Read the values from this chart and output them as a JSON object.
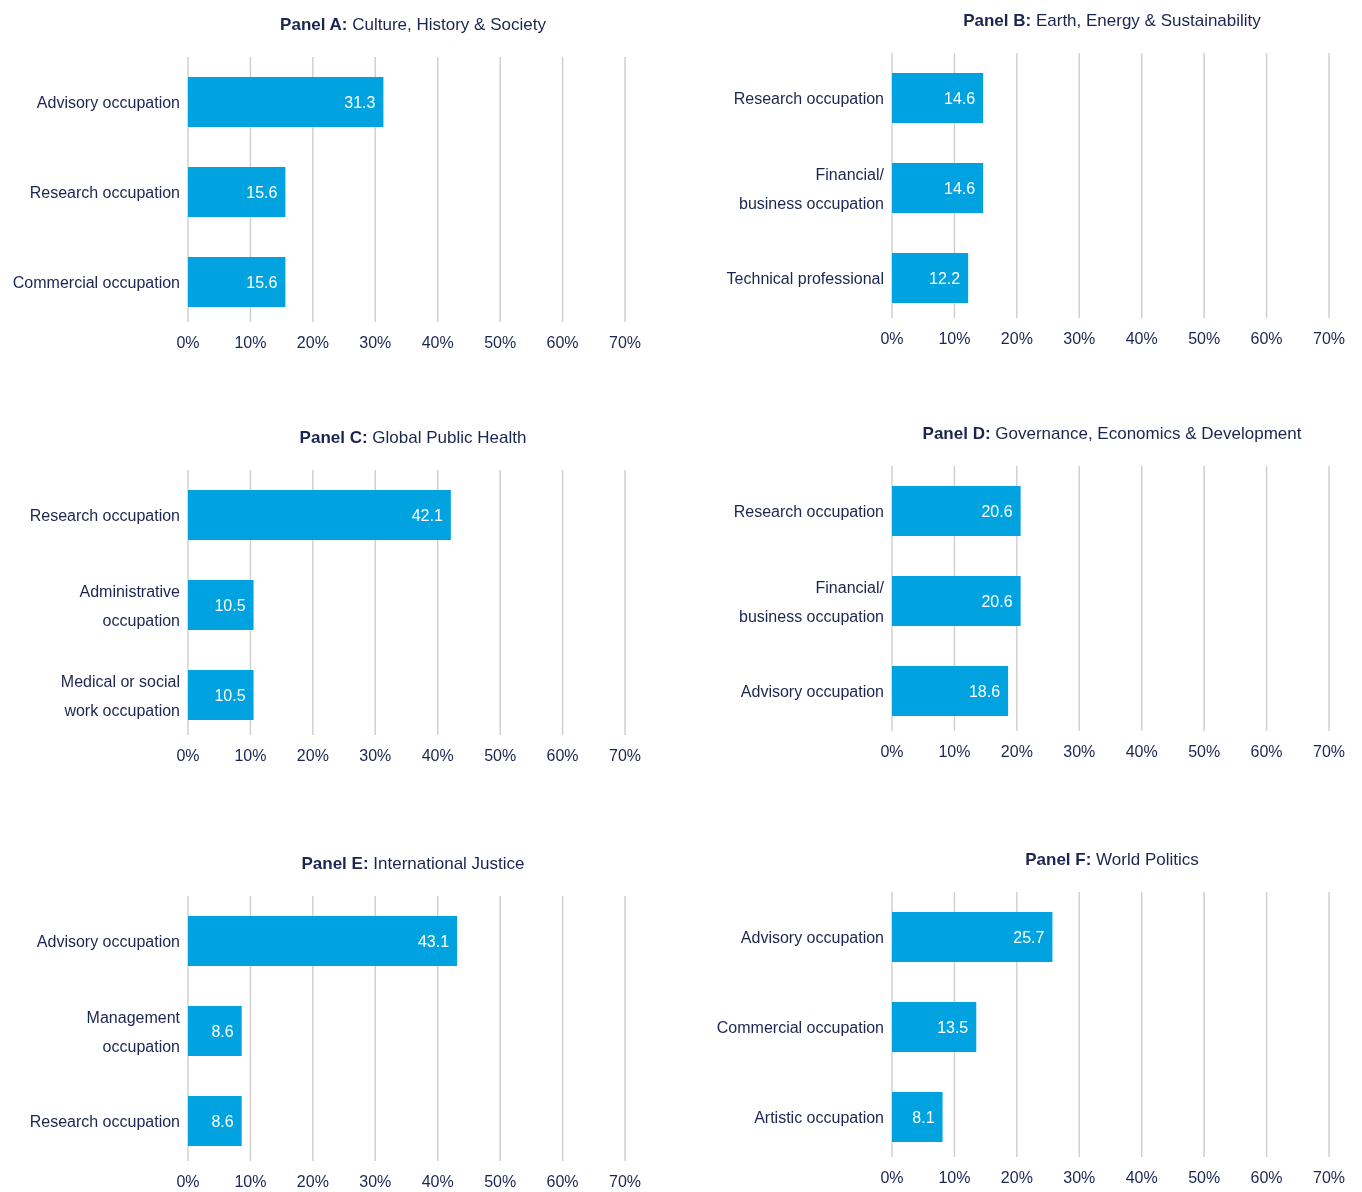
{
  "chart_data": [
    {
      "type": "bar",
      "orientation": "horizontal",
      "title": "Panel A: Culture, History & Society",
      "categories": [
        "Advisory occupation",
        "Research occupation",
        "Commercial occupation"
      ],
      "values": [
        31.3,
        15.6,
        15.6
      ],
      "color": "#00a3e0",
      "xlim": [
        0,
        70
      ],
      "xticks": [
        {
          "value": 0,
          "label": "0%"
        },
        {
          "value": 10,
          "label": "10%"
        },
        {
          "value": 20,
          "label": "20%"
        },
        {
          "value": 30,
          "label": "30%"
        },
        {
          "value": 40,
          "label": "40%"
        },
        {
          "value": 50,
          "label": "50%"
        },
        {
          "value": 60,
          "label": "60%"
        },
        {
          "value": 70,
          "label": "70%"
        }
      ],
      "grid": "x",
      "data_labels": true
    },
    {
      "type": "bar",
      "orientation": "horizontal",
      "title": "Panel B: Earth, Energy & Sustainability",
      "categories": [
        "Research occupation",
        "Financial/\nbusiness occupation",
        "Technical professional"
      ],
      "values": [
        14.6,
        14.6,
        12.2
      ],
      "color": "#00a3e0",
      "xlim": [
        0,
        70
      ],
      "xticks": [
        {
          "value": 0,
          "label": "0%"
        },
        {
          "value": 10,
          "label": "10%"
        },
        {
          "value": 20,
          "label": "20%"
        },
        {
          "value": 30,
          "label": "30%"
        },
        {
          "value": 40,
          "label": "40%"
        },
        {
          "value": 50,
          "label": "50%"
        },
        {
          "value": 60,
          "label": "60%"
        },
        {
          "value": 70,
          "label": "70%"
        }
      ],
      "grid": "x",
      "data_labels": true
    },
    {
      "type": "bar",
      "orientation": "horizontal",
      "title": "Panel C: Global Public Health",
      "categories": [
        "Research occupation",
        "Administrative\noccupation",
        "Medical or social\nwork occupation"
      ],
      "values": [
        42.1,
        10.5,
        10.5
      ],
      "color": "#00a3e0",
      "xlim": [
        0,
        70
      ],
      "xticks": [
        {
          "value": 0,
          "label": "0%"
        },
        {
          "value": 10,
          "label": "10%"
        },
        {
          "value": 20,
          "label": "20%"
        },
        {
          "value": 30,
          "label": "30%"
        },
        {
          "value": 40,
          "label": "40%"
        },
        {
          "value": 50,
          "label": "50%"
        },
        {
          "value": 60,
          "label": "60%"
        },
        {
          "value": 70,
          "label": "70%"
        }
      ],
      "grid": "x",
      "data_labels": true
    },
    {
      "type": "bar",
      "orientation": "horizontal",
      "title": "Panel D: Governance, Economics & Development",
      "categories": [
        "Research occupation",
        "Financial/\nbusiness occupation",
        "Advisory occupation"
      ],
      "values": [
        20.6,
        20.6,
        18.6
      ],
      "color": "#00a3e0",
      "xlim": [
        0,
        70
      ],
      "xticks": [
        {
          "value": 0,
          "label": "0%"
        },
        {
          "value": 10,
          "label": "10%"
        },
        {
          "value": 20,
          "label": "20%"
        },
        {
          "value": 30,
          "label": "30%"
        },
        {
          "value": 40,
          "label": "40%"
        },
        {
          "value": 50,
          "label": "50%"
        },
        {
          "value": 60,
          "label": "60%"
        },
        {
          "value": 70,
          "label": "70%"
        }
      ],
      "grid": "x",
      "data_labels": true
    },
    {
      "type": "bar",
      "orientation": "horizontal",
      "title": "Panel E: International Justice",
      "categories": [
        "Advisory occupation",
        "Management\noccupation",
        "Research occupation"
      ],
      "values": [
        43.1,
        8.6,
        8.6
      ],
      "color": "#00a3e0",
      "xlim": [
        0,
        70
      ],
      "xticks": [
        {
          "value": 0,
          "label": "0%"
        },
        {
          "value": 10,
          "label": "10%"
        },
        {
          "value": 20,
          "label": "20%"
        },
        {
          "value": 30,
          "label": "30%"
        },
        {
          "value": 40,
          "label": "40%"
        },
        {
          "value": 50,
          "label": "50%"
        },
        {
          "value": 60,
          "label": "60%"
        },
        {
          "value": 70,
          "label": "70%"
        }
      ],
      "grid": "x",
      "data_labels": true
    },
    {
      "type": "bar",
      "orientation": "horizontal",
      "title": "Panel F: World Politics",
      "categories": [
        "Advisory occupation",
        "Commercial occupation",
        "Artistic occupation"
      ],
      "values": [
        25.7,
        13.5,
        8.1
      ],
      "color": "#00a3e0",
      "xlim": [
        0,
        70
      ],
      "xticks": [
        {
          "value": 0,
          "label": "0%"
        },
        {
          "value": 10,
          "label": "10%"
        },
        {
          "value": 20,
          "label": "20%"
        },
        {
          "value": 30,
          "label": "30%"
        },
        {
          "value": 40,
          "label": "40%"
        },
        {
          "value": 50,
          "label": "50%"
        },
        {
          "value": 60,
          "label": "60%"
        },
        {
          "value": 70,
          "label": "70%"
        }
      ],
      "grid": "x",
      "data_labels": true
    }
  ]
}
